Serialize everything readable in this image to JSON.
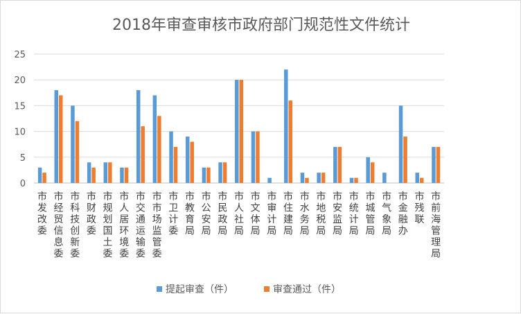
{
  "chart_data": {
    "type": "bar",
    "title": "2018年审查审核市政府部门规范性文件统计",
    "categories": [
      "市发改委",
      "市经贸信息委",
      "市科技创新委",
      "市财政委",
      "市规划国土委",
      "市人居环境委",
      "市交通运输委",
      "市市场监管委",
      "市卫计委",
      "市教育局",
      "市公安局",
      "市民政局",
      "市人社局",
      "市文体局",
      "市审计局",
      "市住建局",
      "市水务局",
      "市地税局",
      "市安监局",
      "市统计局",
      "市城管局",
      "市气象局",
      "市金融办",
      "市残联",
      "市前海管理局"
    ],
    "series": [
      {
        "name": "提起审查（件）",
        "color": "#5b9bd5",
        "values": [
          3,
          18,
          15,
          4,
          4,
          3,
          18,
          17,
          10,
          9,
          3,
          4,
          20,
          10,
          1,
          22,
          2,
          2,
          7,
          1,
          5,
          2,
          15,
          2,
          7
        ]
      },
      {
        "name": "审查通过（件）",
        "color": "#ed7d31",
        "values": [
          2,
          17,
          12,
          3,
          4,
          3,
          11,
          13,
          7,
          8,
          3,
          4,
          20,
          10,
          0,
          16,
          1,
          2,
          7,
          1,
          4,
          0,
          9,
          1,
          7
        ]
      }
    ],
    "yticks": [
      0,
      5,
      10,
      15,
      20,
      25
    ],
    "ylim": [
      0,
      25
    ],
    "grid": true,
    "legend_position": "bottom"
  }
}
